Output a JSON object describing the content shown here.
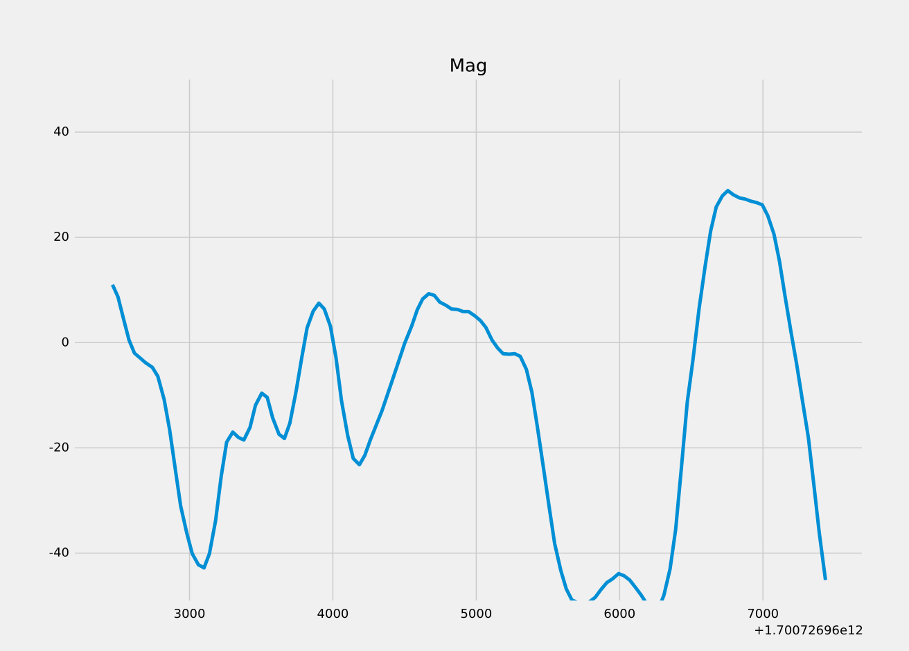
{
  "chart_data": {
    "type": "line",
    "title": "Mag",
    "x_offset_label": "+1.70072696e12",
    "x": [
      2463,
      2501,
      2540,
      2578,
      2616,
      2655,
      2693,
      2741,
      2779,
      2823,
      2861,
      2899,
      2938,
      2981,
      3019,
      3062,
      3101,
      3139,
      3182,
      3221,
      3259,
      3302,
      3341,
      3379,
      3422,
      3460,
      3504,
      3542,
      3580,
      3624,
      3662,
      3700,
      3743,
      3782,
      3820,
      3863,
      3902,
      3940,
      3983,
      4022,
      4060,
      4103,
      4142,
      4185,
      4223,
      4261,
      4343,
      4424,
      4501,
      4549,
      4588,
      4626,
      4669,
      4707,
      4746,
      4789,
      4827,
      4871,
      4909,
      4947,
      4990,
      5029,
      5067,
      5110,
      5149,
      5187,
      5230,
      5269,
      5307,
      5350,
      5388,
      5427,
      5470,
      5508,
      5547,
      5590,
      5628,
      5667,
      5710,
      5748,
      5787,
      5830,
      5868,
      5911,
      5950,
      5993,
      6031,
      6070,
      6113,
      6151,
      6189,
      6232,
      6271,
      6309,
      6352,
      6391,
      6429,
      6472,
      6511,
      6554,
      6597,
      6635,
      6674,
      6717,
      6755,
      6794,
      6837,
      6875,
      6914,
      6957,
      6995,
      7034,
      7077,
      7115,
      7153,
      7197,
      7235,
      7273,
      7317,
      7355,
      7393,
      7436
    ],
    "series": [
      {
        "name": "Mag",
        "color": "#008fd5",
        "values": [
          11.0,
          8.7,
          4.5,
          0.5,
          -2.0,
          -2.9,
          -3.8,
          -4.7,
          -6.4,
          -10.8,
          -16.5,
          -23.7,
          -31.0,
          -36.2,
          -40.1,
          -42.2,
          -42.8,
          -40.1,
          -33.8,
          -25.4,
          -18.9,
          -17.0,
          -18.0,
          -18.5,
          -16.1,
          -11.9,
          -9.6,
          -10.4,
          -14.3,
          -17.4,
          -18.2,
          -15.3,
          -9.3,
          -3.0,
          2.8,
          6.0,
          7.5,
          6.4,
          3.1,
          -2.9,
          -11.0,
          -17.6,
          -22.0,
          -23.2,
          -21.4,
          -18.5,
          -12.9,
          -6.4,
          -0.1,
          3.1,
          6.2,
          8.3,
          9.3,
          9.0,
          7.7,
          7.1,
          6.4,
          6.3,
          5.9,
          5.9,
          5.1,
          4.2,
          2.9,
          0.5,
          -1.0,
          -2.1,
          -2.2,
          -2.1,
          -2.6,
          -5.1,
          -9.4,
          -16.1,
          -24.0,
          -31.1,
          -38.2,
          -43.3,
          -46.8,
          -48.9,
          -49.4,
          -49.6,
          -49.3,
          -48.4,
          -47.0,
          -45.6,
          -44.9,
          -43.9,
          -44.3,
          -45.1,
          -46.6,
          -48.0,
          -49.6,
          -51.0,
          -50.6,
          -48.0,
          -43.0,
          -35.5,
          -24.4,
          -11.3,
          -3.4,
          6.4,
          14.6,
          21.2,
          25.8,
          27.9,
          28.9,
          28.1,
          27.5,
          27.3,
          26.9,
          26.6,
          26.2,
          24.1,
          20.6,
          15.5,
          9.0,
          1.8,
          -4.1,
          -10.6,
          -18.1,
          -27.0,
          -36.2,
          -45.1
        ]
      }
    ],
    "xlim": [
      2200,
      7690
    ],
    "xticks": [
      3000,
      4000,
      5000,
      6000,
      7000
    ],
    "ylim": [
      -49,
      50
    ],
    "yticks": [
      -40,
      -20,
      0,
      20,
      40
    ],
    "grid": true,
    "background": "#f0f0f0",
    "grid_color": "#cbcbcb"
  }
}
